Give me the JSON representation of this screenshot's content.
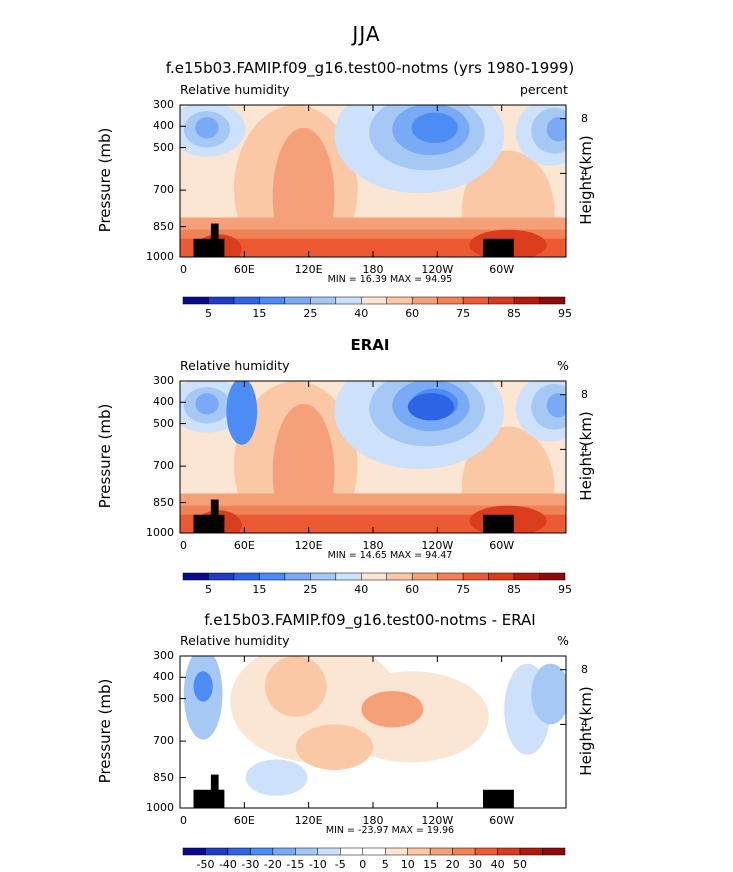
{
  "supertitle": "JJA",
  "colors": {
    "scale_full": [
      "#0a0a8c",
      "#1e3cc8",
      "#2d64e6",
      "#4b8cf5",
      "#78aaf5",
      "#a5c8f5",
      "#cde1fa",
      "#fae6d2",
      "#fac8a5",
      "#f5a078",
      "#f08255",
      "#eb5a32",
      "#dc3c1e",
      "#b4190a",
      "#8c0a0a"
    ],
    "scale_diff": [
      "#0a0a8c",
      "#1e3cc8",
      "#2d64e6",
      "#4b8cf5",
      "#78aaf5",
      "#a5c8f5",
      "#cde1fa",
      "#ffffff",
      "#ffffff",
      "#fae6d2",
      "#fac8a5",
      "#f5a078",
      "#f08255",
      "#eb5a32",
      "#dc3c1e",
      "#b4190a",
      "#8c0a0a"
    ],
    "topography": "#000000"
  },
  "chart_data": [
    {
      "type": "heatmap",
      "title": "f.e15b03.FAMIP.f09_g16.test00-notms (yrs 1980-1999)",
      "left_subtitle": "Relative humidity",
      "right_subtitle": "percent",
      "ylabel": "Pressure (mb)",
      "y2label": "Height (km)",
      "yticks": [
        "300",
        "400",
        "500",
        "700",
        "850",
        "1000"
      ],
      "y2ticks": [
        "8",
        "4"
      ],
      "xticks": [
        "0",
        "60E",
        "120E",
        "180",
        "120W",
        "60W"
      ],
      "minmax": "MIN =   16.39   MAX =   94.95",
      "min": 16.39,
      "max": 94.95,
      "colorbar_labels": [
        "5",
        "15",
        "25",
        "40",
        "60",
        "75",
        "85",
        "95"
      ]
    },
    {
      "type": "heatmap",
      "title": "ERAI",
      "left_subtitle": "Relative humidity",
      "right_subtitle": "%",
      "ylabel": "Pressure (mb)",
      "y2label": "Height (km)",
      "yticks": [
        "300",
        "400",
        "500",
        "700",
        "850",
        "1000"
      ],
      "y2ticks": [
        "8",
        "4"
      ],
      "xticks": [
        "0",
        "60E",
        "120E",
        "180",
        "120W",
        "60W"
      ],
      "minmax": "MIN =   14.65   MAX =   94.47",
      "min": 14.65,
      "max": 94.47,
      "colorbar_labels": [
        "5",
        "15",
        "25",
        "40",
        "60",
        "75",
        "85",
        "95"
      ]
    },
    {
      "type": "heatmap",
      "title": "f.e15b03.FAMIP.f09_g16.test00-notms - ERAI",
      "left_subtitle": "Relative humidity",
      "right_subtitle": "%",
      "ylabel": "Pressure (mb)",
      "y2label": "Height (km)",
      "yticks": [
        "300",
        "400",
        "500",
        "700",
        "850",
        "1000"
      ],
      "y2ticks": [
        "8",
        "4"
      ],
      "xticks": [
        "0",
        "60E",
        "120E",
        "180",
        "120W",
        "60W"
      ],
      "minmax": "MIN =  -23.97   MAX =   19.96",
      "min": -23.97,
      "max": 19.96,
      "colorbar_labels": [
        "-50",
        "-40",
        "-30",
        "-20",
        "-15",
        "-10",
        "-5",
        "0",
        "5",
        "10",
        "15",
        "20",
        "30",
        "40",
        "50"
      ]
    }
  ]
}
